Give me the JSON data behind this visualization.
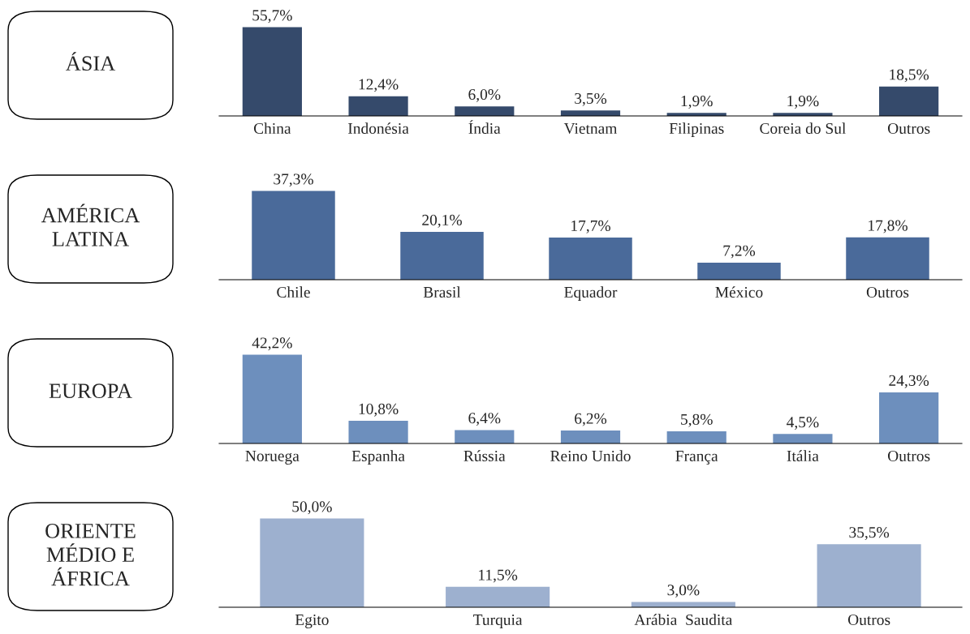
{
  "chart_data": [
    {
      "type": "bar",
      "title": "ÁSIA",
      "categories": [
        "China",
        "Indonésia",
        "Índia",
        "Vietnam",
        "Filipinas",
        "Coreia do Sul",
        "Outros"
      ],
      "values": [
        55.7,
        12.4,
        6.0,
        3.5,
        1.9,
        1.9,
        18.5
      ],
      "value_labels": [
        "55,7%",
        "12,4%",
        "6,0%",
        "3,5%",
        "1,9%",
        "1,9%",
        "18,5%"
      ],
      "color": "#354a6b",
      "grid": false,
      "legend": false
    },
    {
      "type": "bar",
      "title": "AMÉRICA\nLATINA",
      "categories": [
        "Chile",
        "Brasil",
        "Equador",
        "México",
        "Outros"
      ],
      "values": [
        37.3,
        20.1,
        17.7,
        7.2,
        17.8
      ],
      "value_labels": [
        "37,3%",
        "20,1%",
        "17,7%",
        "7,2%",
        "17,8%"
      ],
      "color": "#4a6a9a",
      "grid": false,
      "legend": false
    },
    {
      "type": "bar",
      "title": "EUROPA",
      "categories": [
        "Noruega",
        "Espanha",
        "Rússia",
        "Reino Unido",
        "França",
        "Itália",
        "Outros"
      ],
      "values": [
        42.2,
        10.8,
        6.4,
        6.2,
        5.8,
        4.5,
        24.3
      ],
      "value_labels": [
        "42,2%",
        "10,8%",
        "6,4%",
        "6,2%",
        "5,8%",
        "4,5%",
        "24,3%"
      ],
      "color": "#6d8fbd",
      "grid": false,
      "legend": false
    },
    {
      "type": "bar",
      "title": "ORIENTE\nMÉDIO E\nÁFRICA",
      "categories": [
        "Egito",
        "Turquia",
        "Arábia  Saudita",
        "Outros"
      ],
      "values": [
        50.0,
        11.5,
        3.0,
        35.5
      ],
      "value_labels": [
        "50,0%",
        "11,5%",
        "3,0%",
        "35,5%"
      ],
      "color": "#9db0cf",
      "grid": false,
      "legend": false
    }
  ]
}
